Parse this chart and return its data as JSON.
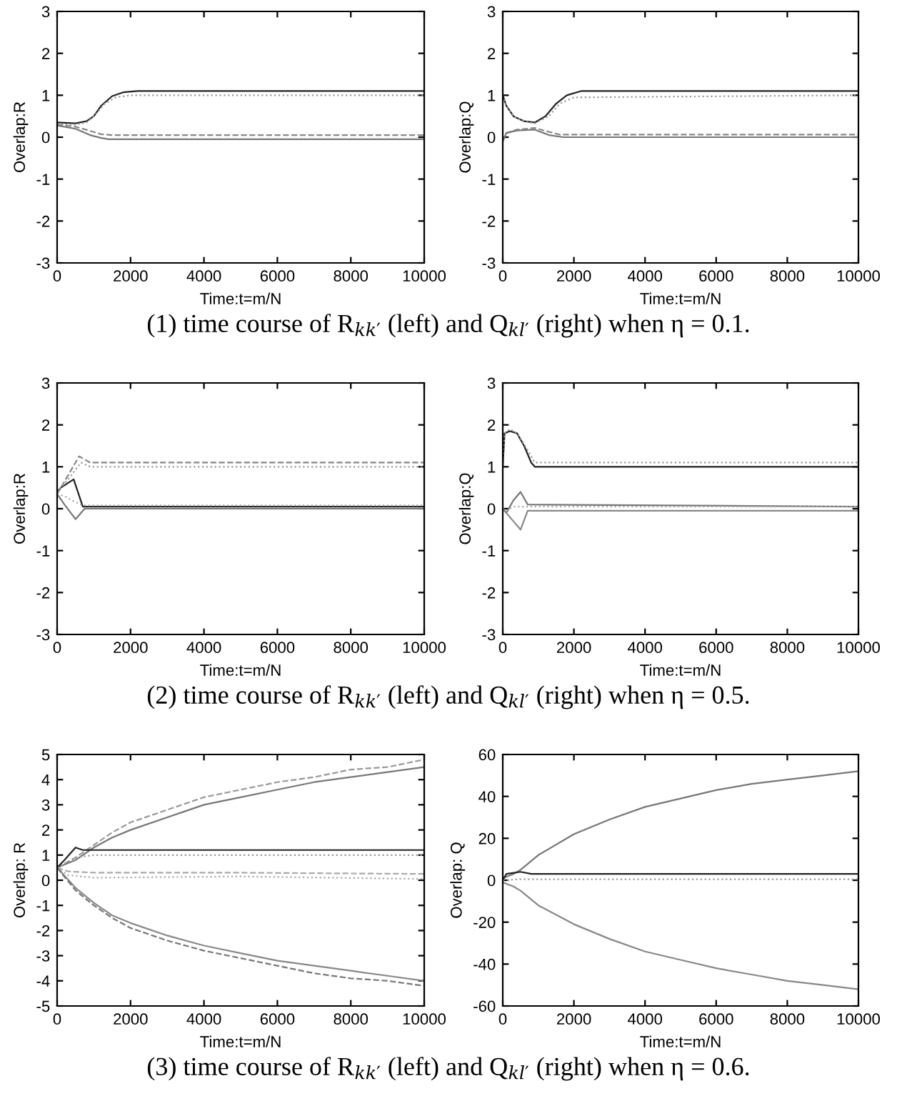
{
  "chart_data": [
    {
      "type": "line",
      "xlabel": "Time:t=m/N",
      "ylabel": "Overlap:R",
      "xlim": [
        0,
        10000
      ],
      "xticks": [
        0,
        2000,
        4000,
        6000,
        8000,
        10000
      ],
      "ylim": [
        -3,
        3
      ],
      "yticks": [
        -3,
        -2,
        -1,
        0,
        1,
        2,
        3
      ],
      "annotations": [
        "(1) time course of R$_{kk′}$ (left) and Q$_{kl′}$ (right) when η = 0.1."
      ],
      "series": [
        {
          "color": "#222222",
          "line_style": "solid",
          "x": [
            0,
            500,
            800,
            1000,
            1200,
            1500,
            1800,
            2200,
            10000
          ],
          "values": [
            0.35,
            0.33,
            0.38,
            0.5,
            0.75,
            0.98,
            1.07,
            1.1,
            1.1
          ]
        },
        {
          "color": "#999999",
          "line_style": "dotted",
          "x": [
            0,
            500,
            800,
            1000,
            1300,
            1600,
            2000,
            10000
          ],
          "values": [
            0.3,
            0.3,
            0.35,
            0.5,
            0.8,
            0.95,
            1.0,
            1.0
          ]
        },
        {
          "color": "#888888",
          "line_style": "dashed",
          "x": [
            0,
            500,
            900,
            1200,
            1500,
            10000
          ],
          "values": [
            0.3,
            0.25,
            0.15,
            0.07,
            0.05,
            0.05
          ]
        },
        {
          "color": "#777777",
          "line_style": "solid",
          "x": [
            0,
            500,
            900,
            1200,
            1400,
            10000
          ],
          "values": [
            0.28,
            0.2,
            0.05,
            -0.02,
            -0.05,
            -0.05
          ]
        }
      ]
    },
    {
      "type": "line",
      "xlabel": "Time:t=m/N",
      "ylabel": "Overlap:Q",
      "xlim": [
        0,
        10000
      ],
      "xticks": [
        0,
        2000,
        4000,
        6000,
        8000,
        10000
      ],
      "ylim": [
        -3,
        3
      ],
      "yticks": [
        -3,
        -2,
        -1,
        0,
        1,
        2,
        3
      ],
      "series": [
        {
          "color": "#222222",
          "line_style": "solid",
          "x": [
            0,
            100,
            300,
            600,
            900,
            1200,
            1500,
            1800,
            2200,
            10000
          ],
          "values": [
            1.0,
            0.75,
            0.5,
            0.38,
            0.35,
            0.5,
            0.8,
            1.0,
            1.1,
            1.1
          ]
        },
        {
          "color": "#999999",
          "line_style": "dotted",
          "x": [
            0,
            100,
            300,
            600,
            900,
            1300,
            1600,
            2000,
            10000
          ],
          "values": [
            1.0,
            0.75,
            0.5,
            0.38,
            0.33,
            0.5,
            0.8,
            0.95,
            1.0
          ]
        },
        {
          "color": "#888888",
          "line_style": "dashed",
          "x": [
            0,
            100,
            400,
            900,
            1200,
            1600,
            10000
          ],
          "values": [
            -0.1,
            0.1,
            0.18,
            0.22,
            0.15,
            0.06,
            0.06
          ]
        },
        {
          "color": "#777777",
          "line_style": "solid",
          "x": [
            0,
            100,
            400,
            900,
            1300,
            1700,
            10000
          ],
          "values": [
            -0.1,
            0.1,
            0.16,
            0.18,
            0.05,
            0.0,
            0.0
          ]
        }
      ]
    },
    {
      "type": "line",
      "xlabel": "Time:t=m/N",
      "ylabel": "Overlap:R",
      "xlim": [
        0,
        10000
      ],
      "xticks": [
        0,
        2000,
        4000,
        6000,
        8000,
        10000
      ],
      "ylim": [
        -3,
        3
      ],
      "yticks": [
        -3,
        -2,
        -1,
        0,
        1,
        2,
        3
      ],
      "annotations": [
        "(2) time course of R$_{kk′}$ (left) and Q$_{kl′}$ (right) when η = 0.5."
      ],
      "series": [
        {
          "color": "#222222",
          "line_style": "solid",
          "x": [
            0,
            100,
            450,
            700,
            10000
          ],
          "values": [
            0.4,
            0.5,
            0.7,
            0.05,
            0.05
          ]
        },
        {
          "color": "#888888",
          "line_style": "dashed",
          "x": [
            0,
            300,
            600,
            900,
            10000
          ],
          "values": [
            0.35,
            0.8,
            1.25,
            1.1,
            1.1
          ]
        },
        {
          "color": "#999999",
          "line_style": "dotted",
          "x": [
            0,
            300,
            650,
            900,
            10000
          ],
          "values": [
            0.4,
            0.7,
            1.1,
            1.0,
            1.0
          ]
        },
        {
          "color": "#777777",
          "line_style": "solid",
          "x": [
            0,
            200,
            500,
            750,
            10000
          ],
          "values": [
            0.35,
            0.1,
            -0.25,
            0.0,
            0.0
          ]
        },
        {
          "color": "#aaaaaa",
          "line_style": "dotted",
          "x": [
            0,
            200,
            400,
            700,
            10000
          ],
          "values": [
            0.35,
            0.3,
            0.2,
            0.08,
            0.08
          ]
        }
      ]
    },
    {
      "type": "line",
      "xlabel": "Time:t=m/N",
      "ylabel": "Overlap:Q",
      "xlim": [
        0,
        10000
      ],
      "xticks": [
        0,
        2000,
        4000,
        6000,
        8000,
        10000
      ],
      "ylim": [
        -3,
        3
      ],
      "yticks": [
        -3,
        -2,
        -1,
        0,
        1,
        2,
        3
      ],
      "series": [
        {
          "color": "#222222",
          "line_style": "solid",
          "x": [
            0,
            50,
            200,
            400,
            600,
            800,
            900,
            10000
          ],
          "values": [
            1.0,
            1.8,
            1.85,
            1.8,
            1.5,
            1.1,
            1.0,
            1.0
          ]
        },
        {
          "color": "#999999",
          "line_style": "dotted",
          "x": [
            0,
            50,
            200,
            400,
            700,
            900,
            10000
          ],
          "values": [
            1.0,
            1.8,
            1.9,
            1.8,
            1.4,
            1.1,
            1.1
          ]
        },
        {
          "color": "#777777",
          "line_style": "solid",
          "x": [
            0,
            100,
            300,
            500,
            700,
            10000
          ],
          "values": [
            0.0,
            -0.1,
            0.2,
            0.4,
            0.1,
            0.05
          ]
        },
        {
          "color": "#888888",
          "line_style": "solid",
          "x": [
            0,
            100,
            300,
            500,
            700,
            10000
          ],
          "values": [
            0.0,
            -0.1,
            -0.3,
            -0.5,
            -0.05,
            -0.05
          ]
        },
        {
          "color": "#aaaaaa",
          "line_style": "dotted",
          "x": [
            0,
            100,
            300,
            600,
            10000
          ],
          "values": [
            0.0,
            -0.05,
            0.05,
            0.05,
            0.05
          ]
        }
      ]
    },
    {
      "type": "line",
      "xlabel": "Time:t=m/N",
      "ylabel": "Overlap: R",
      "xlim": [
        0,
        10000
      ],
      "xticks": [
        0,
        2000,
        4000,
        6000,
        8000,
        10000
      ],
      "ylim": [
        -5,
        5
      ],
      "yticks": [
        -5,
        -4,
        -3,
        -2,
        -1,
        0,
        1,
        2,
        3,
        4,
        5
      ],
      "annotations": [
        "(3) time course of R$_{kk′}$ (left) and Q$_{kl′}$ (right) when η = 0.6."
      ],
      "series": [
        {
          "color": "#999999",
          "line_style": "dashed",
          "x": [
            0,
            500,
            1000,
            1500,
            2000,
            3000,
            4000,
            5000,
            6000,
            7000,
            8000,
            9000,
            10000
          ],
          "values": [
            0.5,
            0.9,
            1.4,
            1.9,
            2.3,
            2.8,
            3.3,
            3.6,
            3.9,
            4.1,
            4.4,
            4.5,
            4.8
          ]
        },
        {
          "color": "#777777",
          "line_style": "solid",
          "x": [
            0,
            500,
            1000,
            1500,
            2000,
            3000,
            4000,
            5000,
            6000,
            7000,
            8000,
            9000,
            10000
          ],
          "values": [
            0.5,
            0.8,
            1.3,
            1.7,
            2.0,
            2.5,
            3.0,
            3.3,
            3.6,
            3.9,
            4.1,
            4.3,
            4.5
          ]
        },
        {
          "color": "#222222",
          "line_style": "solid",
          "x": [
            0,
            200,
            500,
            700,
            1000,
            10000
          ],
          "values": [
            0.5,
            0.8,
            1.3,
            1.2,
            1.2,
            1.2
          ]
        },
        {
          "color": "#999999",
          "line_style": "dotted",
          "x": [
            0,
            500,
            1000,
            10000
          ],
          "values": [
            0.5,
            0.9,
            1.0,
            1.0
          ]
        },
        {
          "color": "#aaaaaa",
          "line_style": "dashed",
          "x": [
            0,
            300,
            1000,
            5000,
            10000
          ],
          "values": [
            0.5,
            0.35,
            0.3,
            0.3,
            0.25
          ]
        },
        {
          "color": "#aaaaaa",
          "line_style": "dotted",
          "x": [
            0,
            300,
            1000,
            5000,
            10000
          ],
          "values": [
            0.5,
            0.2,
            0.1,
            0.15,
            0.05
          ]
        },
        {
          "color": "#888888",
          "line_style": "solid",
          "x": [
            0,
            500,
            1000,
            1500,
            2000,
            3000,
            4000,
            5000,
            6000,
            7000,
            8000,
            9000,
            10000
          ],
          "values": [
            0.5,
            -0.3,
            -0.9,
            -1.4,
            -1.7,
            -2.2,
            -2.6,
            -2.9,
            -3.2,
            -3.4,
            -3.6,
            -3.8,
            -4.0
          ]
        },
        {
          "color": "#777777",
          "line_style": "dashed",
          "x": [
            0,
            500,
            1000,
            1500,
            2000,
            3000,
            4000,
            5000,
            6000,
            7000,
            8000,
            9000,
            10000
          ],
          "values": [
            0.5,
            -0.4,
            -1.0,
            -1.5,
            -1.9,
            -2.4,
            -2.8,
            -3.1,
            -3.4,
            -3.7,
            -3.9,
            -4.0,
            -4.2
          ]
        }
      ]
    },
    {
      "type": "line",
      "xlabel": "Time:t=m/N",
      "ylabel": "Overlap: Q",
      "xlim": [
        0,
        10000
      ],
      "xticks": [
        0,
        2000,
        4000,
        6000,
        8000,
        10000
      ],
      "ylim": [
        -60,
        60
      ],
      "yticks": [
        -60,
        -40,
        -20,
        0,
        20,
        40,
        60
      ],
      "series": [
        {
          "color": "#777777",
          "line_style": "solid",
          "x": [
            0,
            300,
            500,
            1000,
            2000,
            3000,
            4000,
            5000,
            6000,
            7000,
            8000,
            9000,
            10000
          ],
          "values": [
            1,
            3,
            5,
            12,
            22,
            29,
            35,
            39,
            43,
            46,
            48,
            50,
            52
          ]
        },
        {
          "color": "#888888",
          "line_style": "solid",
          "x": [
            0,
            300,
            500,
            1000,
            2000,
            3000,
            4000,
            5000,
            6000,
            7000,
            8000,
            9000,
            10000
          ],
          "values": [
            -1,
            -3,
            -5,
            -12,
            -21,
            -28,
            -34,
            -38,
            -42,
            -45,
            -48,
            -50,
            -52
          ]
        },
        {
          "color": "#222222",
          "line_style": "solid",
          "x": [
            0,
            100,
            500,
            800,
            10000
          ],
          "values": [
            0,
            3,
            4,
            3,
            3
          ]
        },
        {
          "color": "#999999",
          "line_style": "dotted",
          "x": [
            0,
            500,
            10000
          ],
          "values": [
            0,
            0.5,
            0.5
          ]
        }
      ]
    }
  ]
}
